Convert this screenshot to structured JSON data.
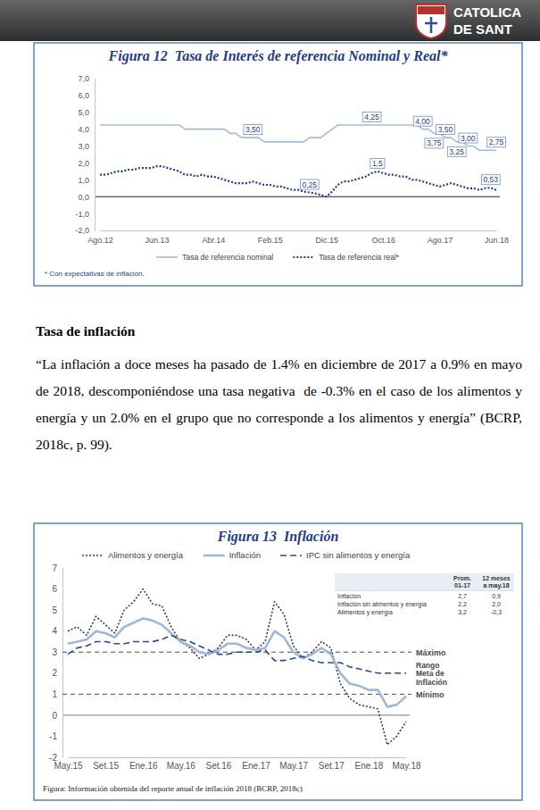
{
  "page": {
    "header_lines": [
      "CATOLICA",
      "DE SANT"
    ],
    "section_title": "Tasa de inflación",
    "paragraph": "“La inflación a doce meses ha pasado de 1.4% en diciembre de 2017 a 0.9% en mayo de 2018, descomponiéndose una tasa negativa  de -0.3% en el caso de los alimentos y energía y un 2.0% en el grupo que no corresponde a los alimentos y energía” (BCRP, 2018c, p. 99)."
  },
  "chart_data": [
    {
      "type": "line",
      "title": "Figura 12  Tasa de Interés de referencia Nominal y Real*",
      "categories": [
        "Ago.12",
        null,
        null,
        null,
        null,
        null,
        null,
        null,
        null,
        null,
        "Jun.13",
        null,
        null,
        null,
        null,
        null,
        null,
        null,
        null,
        null,
        "Abr.14",
        null,
        null,
        null,
        null,
        null,
        null,
        null,
        null,
        null,
        "Feb.15",
        null,
        null,
        null,
        null,
        null,
        null,
        null,
        null,
        null,
        "Dic.15",
        null,
        null,
        null,
        null,
        null,
        null,
        null,
        null,
        null,
        "Oct.16",
        null,
        null,
        null,
        null,
        null,
        null,
        null,
        null,
        null,
        "Ago.17",
        null,
        null,
        null,
        null,
        null,
        null,
        null,
        null,
        null,
        "Jun.18"
      ],
      "series": [
        {
          "name": "Tasa de referencia nominal",
          "color": "#a3bcda",
          "line_style": "solid",
          "values": [
            4.25,
            4.25,
            4.25,
            4.25,
            4.25,
            4.25,
            4.25,
            4.25,
            4.25,
            4.25,
            4.25,
            4.25,
            4.25,
            4.25,
            4.25,
            4.0,
            4.0,
            4.0,
            4.0,
            4.0,
            4.0,
            4.0,
            4.0,
            3.75,
            3.75,
            3.5,
            3.5,
            3.5,
            3.5,
            3.25,
            3.25,
            3.25,
            3.25,
            3.25,
            3.25,
            3.25,
            3.25,
            3.5,
            3.5,
            3.5,
            3.75,
            4.0,
            4.25,
            4.25,
            4.25,
            4.25,
            4.25,
            4.25,
            4.25,
            4.25,
            4.25,
            4.25,
            4.25,
            4.25,
            4.25,
            4.25,
            4.25,
            4.0,
            4.0,
            3.75,
            3.75,
            3.5,
            3.5,
            3.25,
            3.25,
            3.0,
            3.0,
            2.75,
            2.75,
            2.75,
            2.75
          ],
          "value_labels": [
            null,
            null,
            null,
            null,
            null,
            null,
            null,
            null,
            null,
            null,
            null,
            null,
            null,
            null,
            null,
            null,
            null,
            null,
            null,
            null,
            null,
            null,
            null,
            null,
            null,
            null,
            null,
            "3,50",
            null,
            null,
            null,
            null,
            null,
            null,
            null,
            null,
            null,
            null,
            null,
            null,
            null,
            null,
            null,
            null,
            null,
            null,
            null,
            null,
            "4,25",
            null,
            null,
            null,
            null,
            null,
            null,
            null,
            null,
            "4,00",
            null,
            "3,75",
            null,
            "3,50",
            null,
            "3,25",
            null,
            "3,00",
            null,
            null,
            null,
            null,
            "2,75"
          ]
        },
        {
          "name": "Tasa de referencia real*",
          "color": "#1f3f8f",
          "line_style": "dotted",
          "values": [
            1.3,
            1.3,
            1.4,
            1.5,
            1.5,
            1.6,
            1.6,
            1.7,
            1.7,
            1.7,
            1.8,
            1.8,
            1.7,
            1.6,
            1.5,
            1.3,
            1.3,
            1.2,
            1.3,
            1.2,
            1.2,
            1.1,
            1.0,
            0.9,
            0.8,
            0.8,
            0.8,
            0.9,
            0.8,
            0.7,
            0.7,
            0.6,
            0.6,
            0.5,
            0.4,
            0.4,
            0.3,
            0.25,
            0.2,
            0.1,
            0,
            0.3,
            0.7,
            0.9,
            0.9,
            1.0,
            1.1,
            1.2,
            1.4,
            1.5,
            1.4,
            1.3,
            1.3,
            1.2,
            1.2,
            1.0,
            1.0,
            0.9,
            0.8,
            0.7,
            0.6,
            0.7,
            0.8,
            0.7,
            0.6,
            0.5,
            0.5,
            0.4,
            0.5,
            0.53,
            0.4
          ],
          "value_labels": [
            null,
            null,
            null,
            null,
            null,
            null,
            null,
            null,
            null,
            null,
            null,
            null,
            null,
            null,
            null,
            null,
            null,
            null,
            null,
            null,
            null,
            null,
            null,
            null,
            null,
            null,
            null,
            null,
            null,
            null,
            null,
            null,
            null,
            null,
            null,
            null,
            null,
            "0,25",
            null,
            null,
            null,
            null,
            null,
            null,
            null,
            null,
            null,
            null,
            null,
            "1,5",
            null,
            null,
            null,
            null,
            null,
            null,
            null,
            null,
            null,
            null,
            null,
            null,
            null,
            null,
            null,
            null,
            null,
            null,
            null,
            "0,53",
            null
          ]
        }
      ],
      "ylim": [
        -2,
        7
      ],
      "yticks": [
        {
          "value": -2,
          "label": "-2,0"
        },
        {
          "value": -1,
          "label": "-1,0"
        },
        {
          "value": 0,
          "label": "0,0"
        },
        {
          "value": 1,
          "label": "1,0"
        },
        {
          "value": 2,
          "label": "2,0"
        },
        {
          "value": 3,
          "label": "3,0"
        },
        {
          "value": 4,
          "label": "4,0"
        },
        {
          "value": 5,
          "label": "5,0"
        },
        {
          "value": 6,
          "label": "6,0"
        },
        {
          "value": 7,
          "label": "7,0"
        }
      ],
      "grid": false,
      "legend": "bottom",
      "footnote": "* Con expectativas de inflación."
    },
    {
      "type": "line",
      "title": "Figura 13  Inflación",
      "categories": [
        "May.15",
        null,
        null,
        null,
        "Set.15",
        null,
        null,
        null,
        "Ene.16",
        null,
        null,
        null,
        "May.16",
        null,
        null,
        null,
        "Set.16",
        null,
        null,
        null,
        "Ene.17",
        null,
        null,
        null,
        "May.17",
        null,
        null,
        null,
        "Set.17",
        null,
        null,
        null,
        "Ene.18",
        null,
        null,
        null,
        "May.18"
      ],
      "series": [
        {
          "name": "Alimentos y energía",
          "color": "#3c3c3c",
          "line_style": "dotted",
          "values": [
            4.0,
            4.2,
            3.8,
            4.7,
            4.3,
            3.9,
            5.0,
            5.4,
            6.0,
            5.3,
            5.2,
            4.2,
            3.5,
            3.2,
            2.7,
            2.9,
            3.2,
            3.8,
            3.8,
            3.6,
            3.1,
            3.5,
            5.4,
            4.8,
            3.3,
            2.7,
            3.0,
            3.5,
            3.2,
            1.5,
            0.8,
            0.5,
            0.4,
            0.3,
            -1.4,
            -1.0,
            -0.3
          ]
        },
        {
          "name": "Inflación",
          "color": "#9db8d8",
          "line_style": "solid",
          "values": [
            3.4,
            3.5,
            3.6,
            4.0,
            3.9,
            3.7,
            4.2,
            4.4,
            4.6,
            4.5,
            4.3,
            3.9,
            3.5,
            3.3,
            3.0,
            2.9,
            3.1,
            3.4,
            3.4,
            3.2,
            3.1,
            3.2,
            4.0,
            3.7,
            3.0,
            2.7,
            2.9,
            3.2,
            2.9,
            2.0,
            1.5,
            1.4,
            1.2,
            1.2,
            0.4,
            0.5,
            0.9
          ]
        },
        {
          "name": "IPC sin alimentos y energía",
          "color": "#284b8c",
          "line_style": "dashed",
          "values": [
            2.9,
            3.2,
            3.3,
            3.5,
            3.5,
            3.4,
            3.4,
            3.5,
            3.5,
            3.5,
            3.6,
            3.8,
            3.6,
            3.5,
            3.3,
            3.1,
            2.9,
            2.9,
            3.0,
            3.0,
            3.0,
            3.1,
            2.6,
            2.6,
            2.7,
            2.8,
            2.6,
            2.5,
            2.5,
            2.5,
            2.3,
            2.2,
            2.1,
            2.0,
            2.0,
            2.0,
            2.0
          ]
        }
      ],
      "ylim": [
        -2,
        7
      ],
      "yticks": [
        -2,
        -1,
        0,
        1,
        2,
        3,
        4,
        5,
        6,
        7
      ],
      "grid": false,
      "legend": "top-left",
      "target_range": {
        "low": 1,
        "high": 3,
        "low_label": "Mínimo",
        "high_label": "Máximo",
        "label": "Rango Meta de Inflación"
      },
      "table": {
        "columns": [
          "Prom. 01-17",
          "12 meses a may.18"
        ],
        "rows": [
          [
            "Inflación",
            "2,7",
            "0,9"
          ],
          [
            "Inflación sin alimentos y energía",
            "2,2",
            "2,0"
          ],
          [
            "Alimentos y energía",
            "3,2",
            "-0,3"
          ]
        ]
      },
      "source": "Figura: Información obtenida del reporte anual de inflación 2018 (BCRP, 2018c)"
    }
  ]
}
